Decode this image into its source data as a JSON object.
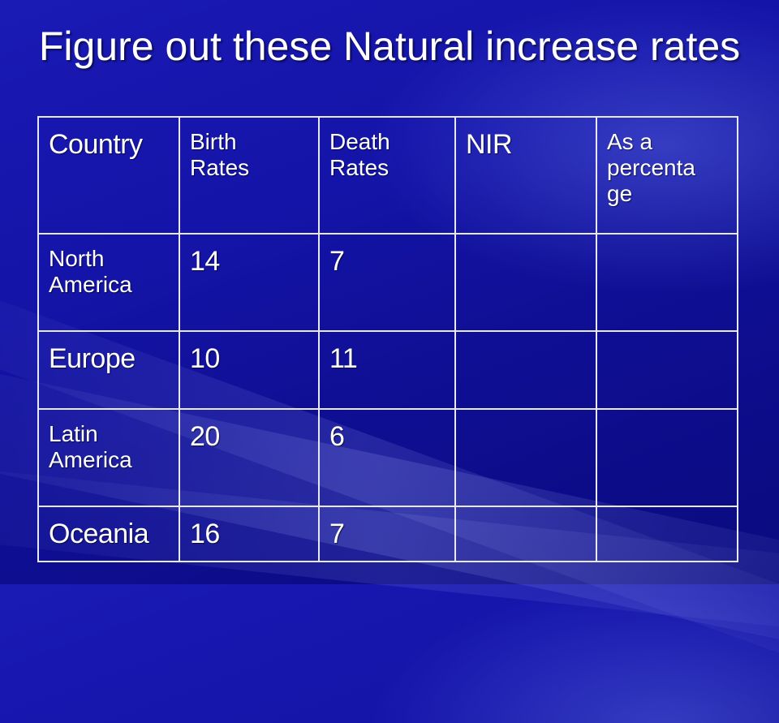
{
  "slide": {
    "title": "Figure out these Natural increase rates"
  },
  "table": {
    "headers": [
      "Country",
      "Birth Rates",
      "Death Rates",
      "NIR",
      "As a percentage"
    ],
    "header_display": [
      "Country",
      "Birth\nRates",
      "Death\nRates",
      "NIR",
      "As a\npercenta\nge"
    ],
    "rows": [
      {
        "country": "North America",
        "country_display": "North\nAmerica",
        "birth": "14",
        "death": "7",
        "nir": "",
        "percent": ""
      },
      {
        "country": "Europe",
        "country_display": "Europe",
        "birth": "10",
        "death": "11",
        "nir": "",
        "percent": ""
      },
      {
        "country": "Latin America",
        "country_display": "Latin\nAmerica",
        "birth": "20",
        "death": "6",
        "nir": "",
        "percent": ""
      },
      {
        "country": "Oceania",
        "country_display": "Oceania",
        "birth": "16",
        "death": "7",
        "nir": "",
        "percent": ""
      }
    ]
  },
  "colors": {
    "background": "#1414a8",
    "text": "#ffffff",
    "grid": "#e8e8f2"
  }
}
